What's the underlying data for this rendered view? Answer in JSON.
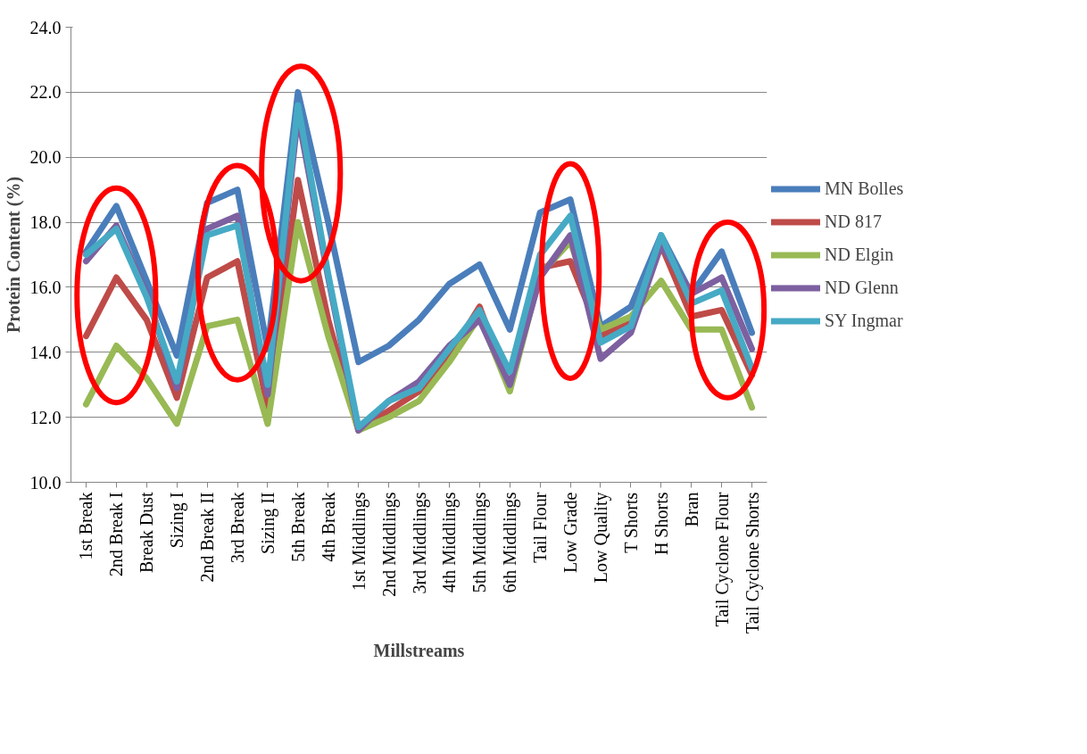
{
  "chart_data": {
    "type": "line",
    "xlabel": "Millstreams",
    "ylabel": "Protein Content (%)",
    "categories": [
      "1st Break",
      "2nd Break I",
      "Break Dust",
      "Sizing I",
      "2nd Break II",
      "3rd Break",
      "Sizing II",
      "5th Break",
      "4th Break",
      "1st Middlings",
      "2nd Middlings",
      "3rd Middlings",
      "4th Middlings",
      "5th Middlings",
      "6th Middlings",
      "Tail Flour",
      "Low Grade",
      "Low Quality",
      "T Shorts",
      "H Shorts",
      "Bran",
      "Tail Cyclone Flour",
      "Tail Cyclone Shorts"
    ],
    "series": [
      {
        "name": "MN Bolles",
        "color": "#4a7ebb",
        "values": [
          17.1,
          18.5,
          16.2,
          13.9,
          18.6,
          19.0,
          14.1,
          22.0,
          18.0,
          13.7,
          14.2,
          15.0,
          16.1,
          16.7,
          14.7,
          18.3,
          18.7,
          14.8,
          15.4,
          17.6,
          15.8,
          17.1,
          14.6
        ]
      },
      {
        "name": "ND 817",
        "color": "#be4b48",
        "values": [
          14.5,
          16.3,
          15.0,
          12.6,
          16.3,
          16.8,
          12.3,
          19.3,
          15.0,
          11.6,
          12.2,
          12.8,
          13.9,
          15.4,
          12.9,
          16.6,
          16.8,
          14.5,
          14.9,
          17.3,
          15.1,
          15.3,
          13.3
        ]
      },
      {
        "name": "ND Elgin",
        "color": "#98b954",
        "values": [
          12.4,
          14.2,
          13.2,
          11.8,
          14.8,
          15.0,
          11.8,
          18.0,
          14.5,
          11.6,
          12.0,
          12.5,
          13.7,
          15.1,
          12.8,
          16.4,
          17.4,
          14.7,
          15.1,
          16.2,
          14.7,
          14.7,
          12.3
        ]
      },
      {
        "name": "ND Glenn",
        "color": "#7d60a0",
        "values": [
          16.8,
          17.9,
          15.8,
          12.9,
          17.8,
          18.2,
          12.7,
          21.3,
          16.3,
          11.6,
          12.5,
          13.1,
          14.2,
          15.0,
          13.0,
          16.3,
          17.6,
          13.8,
          14.6,
          17.3,
          15.8,
          16.3,
          14.1
        ]
      },
      {
        "name": "SY Ingmar",
        "color": "#46aac5",
        "values": [
          17.0,
          17.8,
          15.7,
          13.1,
          17.6,
          17.9,
          13.0,
          21.6,
          16.4,
          11.7,
          12.5,
          12.9,
          14.1,
          15.3,
          13.4,
          17.0,
          18.2,
          14.3,
          14.8,
          17.6,
          15.5,
          15.9,
          13.5
        ]
      }
    ],
    "ylim": [
      10,
      24
    ],
    "yticks": [
      {
        "value": 10,
        "label": "10.0"
      },
      {
        "value": 12,
        "label": "12.0"
      },
      {
        "value": 14,
        "label": "14.0"
      },
      {
        "value": 16,
        "label": "16.0"
      },
      {
        "value": 18,
        "label": "18.0"
      },
      {
        "value": 20,
        "label": "20.0"
      },
      {
        "value": 22,
        "label": "22.0"
      },
      {
        "value": 24,
        "label": "24.0"
      }
    ],
    "grid": "y",
    "legend": "right",
    "marker": "none",
    "line_style": "solid"
  }
}
